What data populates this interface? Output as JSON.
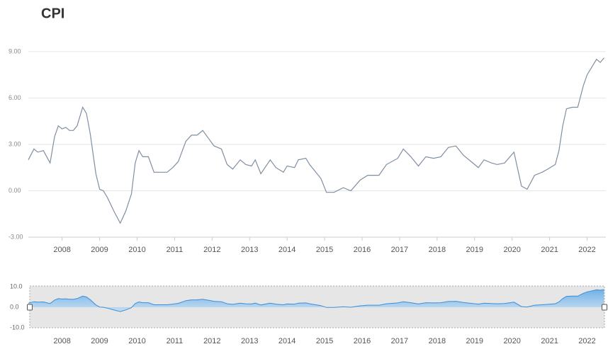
{
  "chart_data": {
    "type": "line",
    "title": "CPI",
    "x": [
      2007.1,
      2007.25,
      2007.35,
      2007.5,
      2007.68,
      2007.8,
      2007.9,
      2008.0,
      2008.1,
      2008.2,
      2008.3,
      2008.4,
      2008.55,
      2008.65,
      2008.75,
      2008.9,
      2009.0,
      2009.1,
      2009.2,
      2009.4,
      2009.55,
      2009.7,
      2009.85,
      2009.95,
      2010.05,
      2010.15,
      2010.3,
      2010.45,
      2010.6,
      2010.8,
      2010.95,
      2011.1,
      2011.3,
      2011.45,
      2011.6,
      2011.75,
      2011.9,
      2012.05,
      2012.25,
      2012.4,
      2012.55,
      2012.75,
      2012.9,
      2013.05,
      2013.15,
      2013.3,
      2013.55,
      2013.7,
      2013.9,
      2014.0,
      2014.2,
      2014.3,
      2014.5,
      2014.6,
      2014.9,
      2015.05,
      2015.25,
      2015.5,
      2015.7,
      2015.95,
      2016.15,
      2016.3,
      2016.45,
      2016.65,
      2016.95,
      2017.1,
      2017.3,
      2017.5,
      2017.7,
      2017.9,
      2018.1,
      2018.3,
      2018.5,
      2018.7,
      2018.9,
      2019.1,
      2019.25,
      2019.45,
      2019.6,
      2019.8,
      2020.05,
      2020.25,
      2020.4,
      2020.6,
      2020.8,
      2020.95,
      2021.15,
      2021.25,
      2021.35,
      2021.45,
      2021.6,
      2021.75,
      2021.9,
      2022.0,
      2022.25,
      2022.35,
      2022.45
    ],
    "series": [
      {
        "name": "CPI",
        "color": "#7f8ea3",
        "values": [
          2.0,
          2.7,
          2.5,
          2.6,
          1.8,
          3.5,
          4.2,
          4.0,
          4.1,
          3.9,
          3.9,
          4.2,
          5.4,
          5.0,
          3.7,
          1.1,
          0.1,
          0.0,
          -0.4,
          -1.4,
          -2.1,
          -1.3,
          -0.2,
          1.8,
          2.6,
          2.2,
          2.2,
          1.2,
          1.2,
          1.2,
          1.5,
          1.9,
          3.2,
          3.6,
          3.6,
          3.9,
          3.4,
          2.9,
          2.7,
          1.7,
          1.4,
          2.0,
          1.7,
          1.6,
          2.0,
          1.1,
          2.0,
          1.5,
          1.2,
          1.6,
          1.5,
          2.0,
          2.1,
          1.7,
          0.8,
          -0.1,
          -0.1,
          0.2,
          0.0,
          0.7,
          1.0,
          1.0,
          1.0,
          1.7,
          2.1,
          2.7,
          2.2,
          1.6,
          2.2,
          2.1,
          2.2,
          2.8,
          2.9,
          2.3,
          1.9,
          1.5,
          2.0,
          1.8,
          1.7,
          1.8,
          2.5,
          0.3,
          0.1,
          1.0,
          1.2,
          1.4,
          1.7,
          2.6,
          4.2,
          5.3,
          5.4,
          5.4,
          6.8,
          7.5,
          8.5,
          8.3,
          8.6
        ]
      }
    ],
    "xlim": [
      2007.1,
      2022.5
    ],
    "xticks": [
      2008,
      2009,
      2010,
      2011,
      2012,
      2013,
      2014,
      2015,
      2016,
      2017,
      2018,
      2019,
      2020,
      2021,
      2022
    ],
    "ylim": [
      -3,
      9.5
    ],
    "yticks": [
      {
        "value": -3,
        "label": "-3.00"
      },
      {
        "value": 0,
        "label": "0.00"
      },
      {
        "value": 3,
        "label": "3.00"
      },
      {
        "value": 6,
        "label": "6.00"
      },
      {
        "value": 9,
        "label": "9.00"
      }
    ],
    "grid": true,
    "navigator": {
      "ylim": [
        -10,
        10
      ],
      "yticks": [
        {
          "value": -10,
          "label": "-10.0"
        },
        {
          "value": 0,
          "label": "0.0"
        },
        {
          "value": 10,
          "label": "10.0"
        }
      ]
    }
  }
}
